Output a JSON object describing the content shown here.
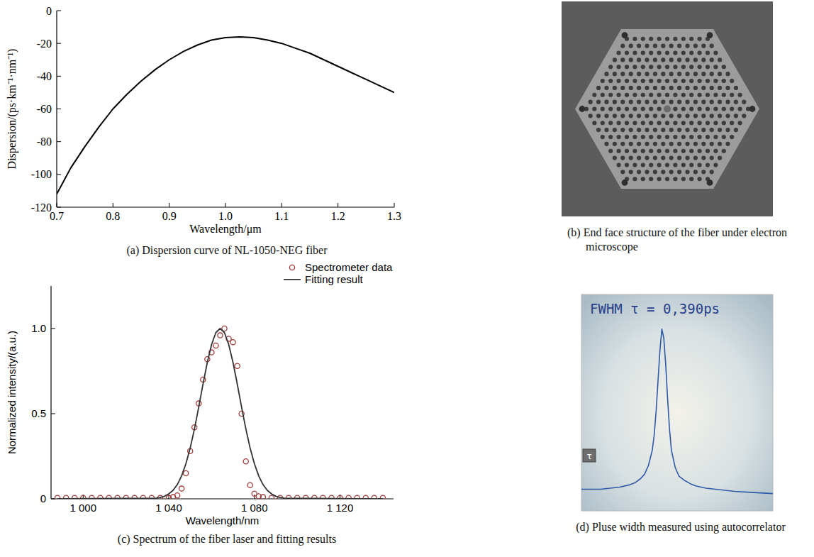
{
  "chart_data": [
    {
      "type": "line",
      "title": "(a) Dispersion curve of NL-1050-NEG fiber",
      "x_label": "Wavelength/μm",
      "y_label": "Dispersion/(ps·km⁻¹·nm⁻¹)",
      "x": [
        0.7,
        0.725,
        0.75,
        0.775,
        0.8,
        0.825,
        0.85,
        0.875,
        0.9,
        0.925,
        0.95,
        0.975,
        1.0,
        1.025,
        1.05,
        1.075,
        1.1,
        1.125,
        1.15,
        1.175,
        1.2,
        1.225,
        1.25,
        1.275,
        1.3
      ],
      "values": [
        -112,
        -96,
        -83,
        -71,
        -60,
        -51,
        -43,
        -36,
        -30,
        -25,
        -21,
        -18,
        -16.5,
        -16,
        -16.5,
        -18,
        -20,
        -23,
        -26,
        -30,
        -34,
        -38,
        -42,
        -46,
        -50
      ],
      "color": "#000000",
      "xlim": [
        0.7,
        1.3
      ],
      "xticks": [
        0.7,
        0.8,
        0.9,
        {
          "value": 1,
          "label": "1.0"
        },
        1.1,
        1.2,
        1.3
      ],
      "ylim": [
        -120,
        0
      ],
      "yticks": [
        -120,
        -100,
        -80,
        -60,
        -40,
        -20,
        0
      ]
    },
    {
      "type": "scatter",
      "title": "(c) Spectrum of the fiber laser and fitting results",
      "x_label": "Wavelength/nm",
      "y_label": "Normalized intensity/(a.u.)",
      "xlim": [
        985,
        1145
      ],
      "xticks": [
        {
          "value": 1000,
          "label": "1 000"
        },
        {
          "value": 1040,
          "label": "1 040"
        },
        {
          "value": 1080,
          "label": "1 080"
        },
        {
          "value": 1120,
          "label": "1 120"
        }
      ],
      "ylim": [
        0,
        1.25
      ],
      "yticks": [
        0,
        0.5,
        {
          "value": 1,
          "label": "1.0"
        }
      ],
      "legend": "upper right",
      "series": [
        {
          "name": "Spectrometer data",
          "type": "scatter",
          "marker": "circle",
          "color": "#a33a3a",
          "x": [
            988,
            992,
            996,
            1000,
            1004,
            1008,
            1012,
            1016,
            1020,
            1024,
            1028,
            1032,
            1036,
            1040,
            1042,
            1044,
            1046,
            1048,
            1050,
            1052,
            1054,
            1056,
            1058,
            1060,
            1062,
            1064,
            1066,
            1068,
            1070,
            1072,
            1074,
            1076,
            1078,
            1080,
            1082,
            1084,
            1088,
            1092,
            1096,
            1100,
            1104,
            1108,
            1112,
            1116,
            1120,
            1124,
            1128,
            1132,
            1136,
            1140
          ],
          "values": [
            0.005,
            0.005,
            0.005,
            0.005,
            0.005,
            0.005,
            0.005,
            0.005,
            0.005,
            0.005,
            0.005,
            0.005,
            0.005,
            0.005,
            0.01,
            0.02,
            0.06,
            0.15,
            0.28,
            0.42,
            0.56,
            0.7,
            0.82,
            0.86,
            0.9,
            0.96,
            1.0,
            0.94,
            0.92,
            0.78,
            0.5,
            0.22,
            0.08,
            0.03,
            0.015,
            0.01,
            0.005,
            0.005,
            0.005,
            0.005,
            0.005,
            0.005,
            0.005,
            0.005,
            0.005,
            0.005,
            0.005,
            0.005,
            0.005,
            0.005
          ]
        },
        {
          "name": "Fitting result",
          "type": "line",
          "color": "#333333",
          "x": [
            988,
            1034,
            1036,
            1038,
            1040,
            1042,
            1044,
            1046,
            1048,
            1050,
            1052,
            1054,
            1056,
            1058,
            1060,
            1062,
            1064,
            1066,
            1068,
            1070,
            1072,
            1074,
            1076,
            1078,
            1080,
            1082,
            1084,
            1086,
            1088,
            1090,
            1092,
            1094,
            1140
          ],
          "values": [
            0,
            0.004,
            0.008,
            0.015,
            0.029,
            0.05,
            0.084,
            0.135,
            0.206,
            0.298,
            0.411,
            0.539,
            0.674,
            0.801,
            0.906,
            0.976,
            1,
            0.976,
            0.906,
            0.801,
            0.674,
            0.539,
            0.411,
            0.298,
            0.206,
            0.135,
            0.084,
            0.05,
            0.029,
            0.015,
            0.008,
            0.004,
            0
          ]
        }
      ]
    },
    {
      "type": "line",
      "title": "(d) Pluse width measured using autocorrelator",
      "annotations": [
        "FWHM τ = 0,390ps",
        "τ"
      ],
      "tick_labels": false,
      "x": [
        0,
        5,
        10,
        15,
        20,
        25,
        28,
        31,
        33,
        35,
        37,
        38,
        39,
        40,
        41,
        42,
        43,
        44,
        45,
        46,
        47,
        49,
        51,
        54,
        57,
        60,
        65,
        70,
        80,
        90,
        100
      ],
      "values": [
        10,
        10,
        10,
        10.5,
        11,
        12,
        13,
        15,
        17,
        21,
        28,
        35,
        46,
        60,
        74,
        84,
        80,
        68,
        52,
        38,
        28,
        20,
        16,
        14,
        12.5,
        11.5,
        10.5,
        10,
        9,
        8.5,
        8
      ],
      "color": "#2f5aa8",
      "xlim": [
        0,
        100
      ],
      "ylim": [
        0,
        100
      ]
    }
  ],
  "image": {
    "caption": "(b) End face structure of the fiber under electron microscope"
  }
}
